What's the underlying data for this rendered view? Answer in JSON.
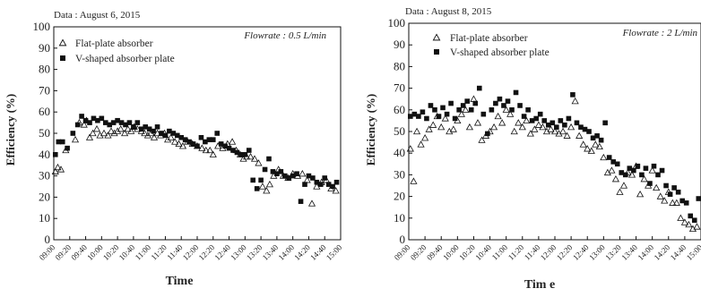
{
  "chart_data": [
    {
      "type": "scatter",
      "date_label": "Data : August 6, 2015",
      "flowrate_label": "Flowrate : 0.5 L/min",
      "xlabel": "Time",
      "ylabel": "Efficiency (%)",
      "ylim": [
        0,
        100
      ],
      "yticks": [
        0,
        10,
        20,
        30,
        40,
        50,
        60,
        70,
        80,
        90,
        100
      ],
      "xticks": [
        "09:00",
        "09:20",
        "09:40",
        "10:00",
        "10:20",
        "10:40",
        "11:00",
        "11:20",
        "11:40",
        "12:00",
        "12:20",
        "12:40",
        "13:00",
        "13:20",
        "13:40",
        "14:00",
        "14:20",
        "14:40",
        "15:00"
      ],
      "x_unit_minutes": true,
      "x_start": "09:00",
      "x_end": "15:00",
      "legend_position": "top-left",
      "series": [
        {
          "name": "Flat-plate absorber",
          "marker": "triangle-open",
          "x": [
            "09:02",
            "09:05",
            "09:09",
            "09:15",
            "09:27",
            "09:32",
            "09:38",
            "09:41",
            "09:45",
            "09:49",
            "09:54",
            "09:58",
            "10:03",
            "10:08",
            "10:12",
            "10:16",
            "10:20",
            "10:24",
            "10:29",
            "10:33",
            "10:37",
            "10:41",
            "10:45",
            "10:50",
            "10:54",
            "10:58",
            "11:02",
            "11:06",
            "11:10",
            "11:14",
            "11:19",
            "11:23",
            "11:27",
            "11:32",
            "11:37",
            "11:42",
            "11:48",
            "11:54",
            "12:00",
            "12:06",
            "12:11",
            "12:16",
            "12:20",
            "12:26",
            "12:32",
            "12:38",
            "12:44",
            "12:49",
            "12:54",
            "12:58",
            "13:02",
            "13:07",
            "13:12",
            "13:17",
            "13:22",
            "13:27",
            "13:31",
            "13:36",
            "13:42",
            "13:48",
            "13:54",
            "14:00",
            "14:06",
            "14:12",
            "14:18",
            "14:24",
            "14:30",
            "14:36",
            "14:42",
            "14:48",
            "14:54",
            "15:00"
          ],
          "y": [
            32,
            34,
            33,
            42,
            47,
            55,
            54,
            56,
            48,
            50,
            52,
            49,
            50,
            49,
            51,
            50,
            51,
            52,
            50,
            52,
            51,
            53,
            52,
            51,
            50,
            49,
            50,
            48,
            50,
            49,
            50,
            47,
            48,
            46,
            45,
            44,
            46,
            45,
            44,
            43,
            42,
            42,
            40,
            44,
            43,
            45,
            46,
            42,
            40,
            38,
            39,
            39,
            38,
            36,
            25,
            23,
            26,
            30,
            33,
            30,
            29,
            31,
            30,
            31,
            28,
            17,
            25,
            27,
            28,
            24,
            23,
            22
          ]
        },
        {
          "name": "V-shaped absorber plate",
          "marker": "square-filled",
          "x": [
            "09:02",
            "09:06",
            "09:11",
            "09:17",
            "09:24",
            "09:30",
            "09:35",
            "09:40",
            "09:45",
            "09:50",
            "09:55",
            "10:00",
            "10:05",
            "10:10",
            "10:15",
            "10:20",
            "10:25",
            "10:30",
            "10:35",
            "10:40",
            "10:45",
            "10:50",
            "10:55",
            "11:00",
            "11:05",
            "11:10",
            "11:15",
            "11:20",
            "11:25",
            "11:30",
            "11:35",
            "11:40",
            "11:45",
            "11:50",
            "11:55",
            "12:00",
            "12:05",
            "12:10",
            "12:15",
            "12:20",
            "12:25",
            "12:30",
            "12:35",
            "12:40",
            "12:45",
            "12:50",
            "12:55",
            "13:00",
            "13:05",
            "13:10",
            "13:15",
            "13:20",
            "13:25",
            "13:30",
            "13:35",
            "13:40",
            "13:45",
            "13:50",
            "13:55",
            "14:00",
            "14:05",
            "14:10",
            "14:15",
            "14:20",
            "14:25",
            "14:30",
            "14:35",
            "14:40",
            "14:45",
            "14:50",
            "14:55",
            "15:00"
          ],
          "y": [
            40,
            46,
            46,
            43,
            50,
            54,
            58,
            56,
            55,
            57,
            56,
            57,
            55,
            54,
            55,
            56,
            55,
            54,
            55,
            53,
            55,
            52,
            53,
            52,
            51,
            53,
            50,
            49,
            51,
            50,
            49,
            48,
            47,
            46,
            45,
            44,
            48,
            46,
            47,
            47,
            50,
            45,
            44,
            43,
            42,
            41,
            40,
            40,
            42,
            28,
            24,
            28,
            33,
            38,
            32,
            31,
            32,
            30,
            29,
            30,
            31,
            18,
            26,
            30,
            29,
            27,
            26,
            29,
            26,
            25,
            27,
            26
          ]
        }
      ]
    },
    {
      "type": "scatter",
      "date_label": "Data : August 8, 2015",
      "flowrate_label": "Flowrate : 2 L/min",
      "xlabel": "Tim e",
      "ylabel": "Efficiency (%)",
      "ylim": [
        0,
        100
      ],
      "yticks": [
        0,
        10,
        20,
        30,
        40,
        50,
        60,
        70,
        80,
        90,
        100
      ],
      "xticks": [
        "09:00",
        "09:20",
        "09:40",
        "10:00",
        "10:20",
        "10:40",
        "11:00",
        "11:20",
        "11:40",
        "12:00",
        "12:20",
        "12:40",
        "13:00",
        "13:20",
        "13:40",
        "14:00",
        "14:20",
        "14:40",
        "15:00"
      ],
      "x_start": "09:00",
      "x_end": "15:00",
      "legend_position": "top-left",
      "series": [
        {
          "name": "Flat-plate absorber",
          "marker": "triangle-open",
          "x": [
            "09:02",
            "09:06",
            "09:10",
            "09:15",
            "09:20",
            "09:25",
            "09:30",
            "09:35",
            "09:40",
            "09:45",
            "09:50",
            "09:55",
            "10:00",
            "10:05",
            "10:10",
            "10:15",
            "10:20",
            "10:25",
            "10:30",
            "10:35",
            "10:40",
            "10:45",
            "10:50",
            "10:55",
            "11:00",
            "11:05",
            "11:10",
            "11:15",
            "11:20",
            "11:25",
            "11:30",
            "11:35",
            "11:40",
            "11:45",
            "11:50",
            "11:55",
            "12:00",
            "12:05",
            "12:10",
            "12:15",
            "12:20",
            "12:25",
            "12:30",
            "12:35",
            "12:40",
            "12:45",
            "12:50",
            "12:55",
            "13:00",
            "13:05",
            "13:10",
            "13:15",
            "13:20",
            "13:25",
            "13:30",
            "13:35",
            "13:40",
            "13:45",
            "13:50",
            "13:55",
            "14:00",
            "14:05",
            "14:10",
            "14:15",
            "14:20",
            "14:25",
            "14:30",
            "14:35",
            "14:40",
            "14:45",
            "14:50",
            "14:55"
          ],
          "y": [
            42,
            27,
            50,
            44,
            47,
            51,
            53,
            57,
            52,
            56,
            50,
            51,
            55,
            58,
            60,
            52,
            65,
            54,
            46,
            48,
            50,
            52,
            57,
            54,
            60,
            58,
            50,
            54,
            52,
            55,
            49,
            51,
            53,
            52,
            50,
            51,
            50,
            49,
            50,
            48,
            52,
            64,
            48,
            44,
            42,
            41,
            44,
            43,
            38,
            31,
            32,
            28,
            22,
            25,
            31,
            30,
            34,
            21,
            28,
            25,
            32,
            24,
            20,
            18,
            22,
            17,
            17,
            10,
            8,
            7,
            5,
            6
          ]
        },
        {
          "name": "V-shaped absorber plate",
          "marker": "square-filled",
          "x": [
            "09:02",
            "09:07",
            "09:12",
            "09:17",
            "09:22",
            "09:27",
            "09:32",
            "09:37",
            "09:42",
            "09:47",
            "09:52",
            "09:57",
            "10:02",
            "10:07",
            "10:12",
            "10:17",
            "10:22",
            "10:27",
            "10:32",
            "10:37",
            "10:42",
            "10:47",
            "10:52",
            "10:57",
            "11:02",
            "11:07",
            "11:12",
            "11:17",
            "11:22",
            "11:27",
            "11:32",
            "11:37",
            "11:42",
            "11:47",
            "11:52",
            "11:57",
            "12:02",
            "12:07",
            "12:12",
            "12:17",
            "12:22",
            "12:27",
            "12:32",
            "12:37",
            "12:42",
            "12:47",
            "12:52",
            "12:57",
            "13:02",
            "13:07",
            "13:12",
            "13:17",
            "13:22",
            "13:27",
            "13:32",
            "13:37",
            "13:42",
            "13:47",
            "13:52",
            "13:57",
            "14:02",
            "14:07",
            "14:12",
            "14:17",
            "14:22",
            "14:27",
            "14:32",
            "14:37",
            "14:42",
            "14:47",
            "14:52",
            "14:57"
          ],
          "y": [
            57,
            58,
            57,
            59,
            56,
            62,
            60,
            57,
            61,
            58,
            63,
            56,
            60,
            62,
            64,
            60,
            63,
            70,
            58,
            49,
            60,
            63,
            65,
            62,
            64,
            60,
            68,
            62,
            57,
            60,
            55,
            56,
            58,
            55,
            53,
            54,
            52,
            55,
            53,
            56,
            67,
            54,
            52,
            51,
            50,
            47,
            48,
            46,
            54,
            38,
            36,
            35,
            31,
            30,
            33,
            32,
            34,
            30,
            33,
            26,
            34,
            30,
            32,
            25,
            21,
            24,
            22,
            18,
            17,
            11,
            9,
            19
          ]
        }
      ]
    }
  ]
}
